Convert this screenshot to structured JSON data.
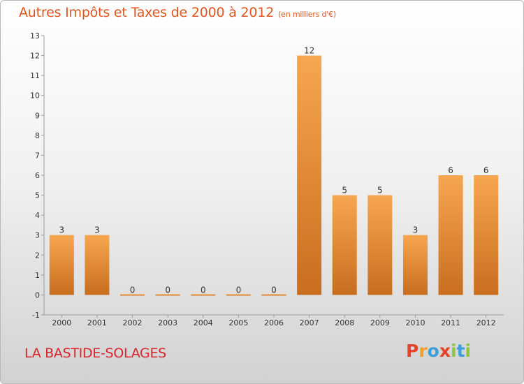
{
  "title": "Autres Impôts et Taxes de 2000 à 2012",
  "unit": "(en milliers d'€)",
  "commune": "LA BASTIDE-SOLAGES",
  "logo": {
    "letters": [
      "P",
      "r",
      "o",
      "x",
      "i",
      "t",
      "i"
    ],
    "colors": [
      "#e8432a",
      "#f0a02a",
      "#3a9ed8",
      "#e8432a",
      "#8cc63f",
      "#3a9ed8",
      "#8cc63f"
    ]
  },
  "colors": {
    "title": "#e0541f",
    "commune": "#d9262e",
    "bar_light": "#f7a650",
    "bar_dark": "#c86e1e"
  },
  "chart_data": {
    "type": "bar",
    "categories": [
      "2000",
      "2001",
      "2002",
      "2003",
      "2004",
      "2005",
      "2006",
      "2007",
      "2008",
      "2009",
      "2010",
      "2011",
      "2012"
    ],
    "values": [
      3,
      3,
      0,
      0,
      0,
      0,
      0,
      12,
      5,
      5,
      3,
      6,
      6
    ],
    "data_labels": [
      "3",
      "3",
      "0",
      "0",
      "0",
      "0",
      "0",
      "12",
      "5",
      "5",
      "3",
      "6",
      "6"
    ],
    "ylim": [
      -1,
      13
    ],
    "yticks": [
      "-1",
      "0",
      "1",
      "2",
      "3",
      "4",
      "5",
      "6",
      "7",
      "8",
      "9",
      "10",
      "11",
      "12",
      "13"
    ],
    "grid": false,
    "legend": "none"
  }
}
